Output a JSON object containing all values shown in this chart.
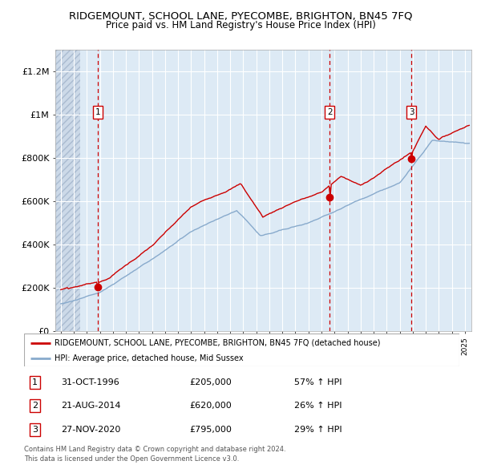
{
  "title": "RIDGEMOUNT, SCHOOL LANE, PYECOMBE, BRIGHTON, BN45 7FQ",
  "subtitle": "Price paid vs. HM Land Registry's House Price Index (HPI)",
  "legend_line1": "RIDGEMOUNT, SCHOOL LANE, PYECOMBE, BRIGHTON, BN45 7FQ (detached house)",
  "legend_line2": "HPI: Average price, detached house, Mid Sussex",
  "sale_color": "#cc0000",
  "hpi_color": "#88aacc",
  "bg_color": "#ddeaf5",
  "grid_color": "#ffffff",
  "sale_points": [
    {
      "date_num": 1996.83,
      "price": 205000,
      "label": "1"
    },
    {
      "date_num": 2014.63,
      "price": 620000,
      "label": "2"
    },
    {
      "date_num": 2020.9,
      "price": 795000,
      "label": "3"
    }
  ],
  "table_rows": [
    {
      "num": "1",
      "date": "31-OCT-1996",
      "price": "£205,000",
      "hpi": "57% ↑ HPI"
    },
    {
      "num": "2",
      "date": "21-AUG-2014",
      "price": "£620,000",
      "hpi": "26% ↑ HPI"
    },
    {
      "num": "3",
      "date": "27-NOV-2020",
      "price": "£795,000",
      "hpi": "29% ↑ HPI"
    }
  ],
  "footer": "Contains HM Land Registry data © Crown copyright and database right 2024.\nThis data is licensed under the Open Government Licence v3.0.",
  "yticks": [
    0,
    200000,
    400000,
    600000,
    800000,
    1000000,
    1200000
  ],
  "ytick_labels": [
    "£0",
    "£200K",
    "£400K",
    "£600K",
    "£800K",
    "£1M",
    "£1.2M"
  ],
  "xmin": 1993.58,
  "xmax": 2025.5,
  "ymin": 0,
  "ymax": 1300000,
  "hatch_end": 1995.5
}
